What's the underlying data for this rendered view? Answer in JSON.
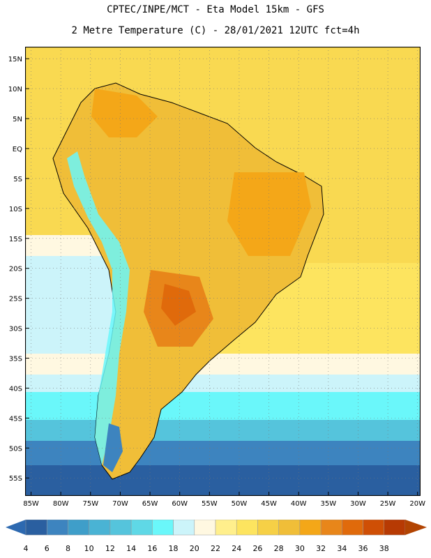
{
  "header": {
    "line1": "CPTEC/INPE/MCT -  Eta Model 15km - GFS",
    "line2": "2 Metre Temperature (C) - 28/01/2021 12UTC fct=4h"
  },
  "map": {
    "lat_labels": [
      "15N",
      "10N",
      "5N",
      "EQ",
      "5S",
      "10S",
      "15S",
      "20S",
      "25S",
      "30S",
      "35S",
      "40S",
      "45S",
      "50S",
      "55S"
    ],
    "lon_labels": [
      "85W",
      "80W",
      "75W",
      "70W",
      "65W",
      "60W",
      "55W",
      "50W",
      "45W",
      "40W",
      "35W",
      "30W",
      "25W",
      "20W"
    ],
    "extent": {
      "lon_min": -86,
      "lon_max": -19.5,
      "lat_min": -58,
      "lat_max": 17
    }
  },
  "legend": {
    "values": [
      "4",
      "6",
      "8",
      "10",
      "12",
      "14",
      "16",
      "18",
      "20",
      "22",
      "24",
      "26",
      "28",
      "30",
      "32",
      "34",
      "36",
      "38"
    ],
    "colors": [
      "#2a5fa0",
      "#3d84bf",
      "#3f9ec9",
      "#4ab3d4",
      "#55c4dc",
      "#5fd8e6",
      "#6af7fa",
      "#ccf4fa",
      "#fff8e1",
      "#ffef8c",
      "#fde45f",
      "#f6d046",
      "#f0be38",
      "#f4a718",
      "#e8861a",
      "#e06a0b",
      "#cf4f05",
      "#b73a03"
    ],
    "under_color": "#2d69b0",
    "over_color": "#b24402"
  }
}
